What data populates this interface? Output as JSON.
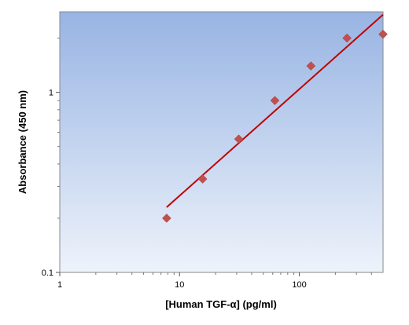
{
  "chart_data": {
    "type": "scatter",
    "title": "",
    "xlabel": "[Human TGF-α] (pg/ml)",
    "ylabel": "Absorbance (450 nm)",
    "xscale": "log",
    "yscale": "log",
    "xlim": [
      1,
      500
    ],
    "ylim": [
      0.1,
      2.8
    ],
    "xticks": [
      1,
      10,
      100
    ],
    "xtick_labels": [
      "1",
      "10",
      "100"
    ],
    "yticks": [
      0.1,
      1
    ],
    "ytick_labels": [
      "0.1",
      "1"
    ],
    "grid": false,
    "legend": "none",
    "series": [
      {
        "type": "scatter",
        "marker": "diamond",
        "color": "#c0504d",
        "x": [
          7.8,
          15.6,
          31.2,
          62.5,
          125,
          250,
          500
        ],
        "y": [
          0.2,
          0.33,
          0.55,
          0.9,
          1.4,
          2.0,
          2.1
        ]
      },
      {
        "type": "line",
        "color": "#c00000",
        "x": [
          7.8,
          500
        ],
        "y": [
          0.23,
          2.7
        ]
      }
    ],
    "colors": {
      "plot_bg_top": "#98b4e3",
      "plot_bg_bottom": "#eef3fb"
    }
  }
}
